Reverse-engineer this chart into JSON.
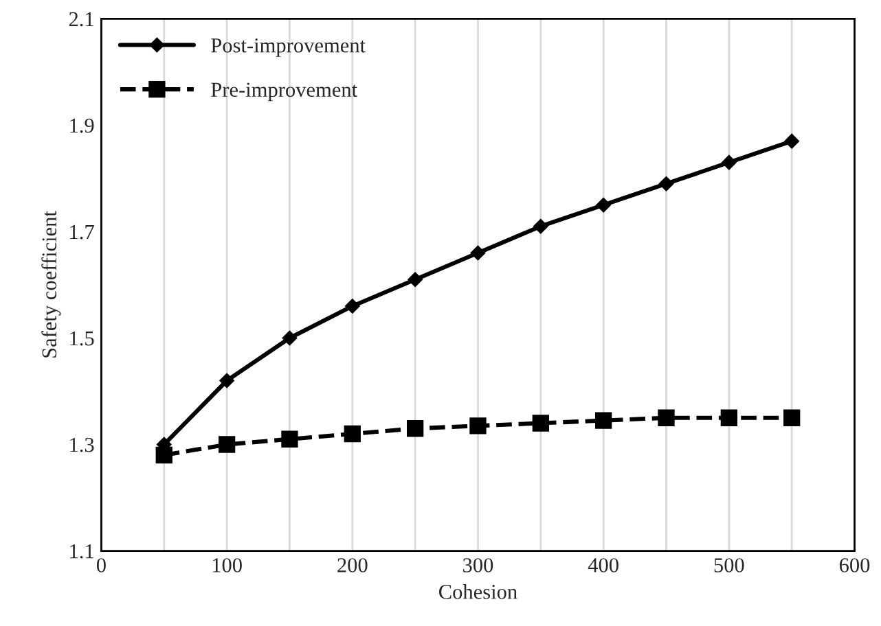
{
  "chart_data": {
    "type": "line",
    "xlabel": "Cohesion",
    "ylabel": "Safety coefficient",
    "x": [
      50,
      100,
      150,
      200,
      250,
      300,
      350,
      400,
      450,
      500,
      550
    ],
    "series": [
      {
        "name": "Post-improvement",
        "color": "#000000",
        "marker": "diamond",
        "line_style": "solid",
        "values": [
          1.3,
          1.42,
          1.5,
          1.56,
          1.61,
          1.66,
          1.71,
          1.75,
          1.79,
          1.83,
          1.87
        ]
      },
      {
        "name": "Pre-improvement",
        "color": "#000000",
        "marker": "square",
        "line_style": "dashed",
        "values": [
          1.28,
          1.3,
          1.31,
          1.32,
          1.33,
          1.335,
          1.34,
          1.345,
          1.35,
          1.35,
          1.35
        ]
      }
    ],
    "xlim": [
      0,
      600
    ],
    "xticks": [
      0,
      {
        "value": 50,
        "label": null
      },
      100,
      {
        "value": 150,
        "label": null
      },
      200,
      {
        "value": 250,
        "label": null
      },
      300,
      {
        "value": 350,
        "label": null
      },
      400,
      {
        "value": 450,
        "label": null
      },
      500,
      {
        "value": 550,
        "label": null
      },
      600
    ],
    "ylim": [
      1.1,
      2.1
    ],
    "yticks": [
      1.1,
      1.3,
      1.5,
      1.7,
      1.9,
      2.1
    ],
    "grid": "x",
    "legend": "top left"
  }
}
